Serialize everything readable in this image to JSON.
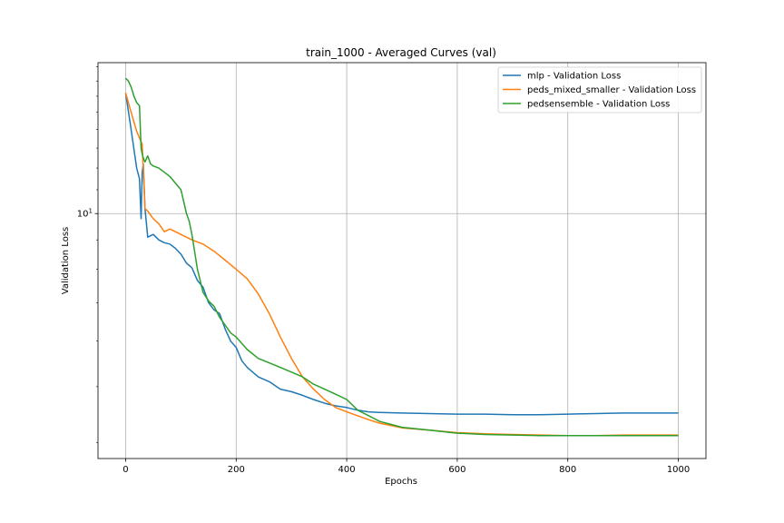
{
  "chart_data": {
    "type": "line",
    "title": "train_1000 - Averaged Curves (val)",
    "xlabel": "Epochs",
    "ylabel": "Validation Loss",
    "xlim": [
      -50,
      1050
    ],
    "ylim": [
      3.75,
      18.3
    ],
    "yscale": "log",
    "grid": true,
    "legend_position": "top-right",
    "x_ticks": [
      0,
      200,
      400,
      600,
      800,
      1000
    ],
    "y_ticks": [
      {
        "value": 10,
        "label": "10",
        "exp": "1"
      }
    ],
    "series": [
      {
        "name": "mlp - Validation Loss",
        "color": "#1f77b4",
        "x": [
          0,
          10,
          20,
          25,
          28,
          30,
          32,
          35,
          40,
          50,
          60,
          70,
          80,
          90,
          100,
          110,
          120,
          130,
          140,
          150,
          160,
          170,
          180,
          190,
          200,
          210,
          220,
          240,
          260,
          280,
          300,
          320,
          340,
          360,
          380,
          400,
          420,
          440,
          460,
          500,
          550,
          600,
          650,
          700,
          750,
          800,
          850,
          900,
          950,
          1000
        ],
        "y": [
          16.2,
          14.0,
          12.0,
          11.5,
          9.8,
          11.8,
          12.2,
          10.2,
          9.1,
          9.2,
          9.0,
          8.9,
          8.85,
          8.7,
          8.5,
          8.2,
          8.05,
          7.65,
          7.45,
          7.0,
          6.8,
          6.7,
          6.3,
          6.0,
          5.85,
          5.55,
          5.4,
          5.2,
          5.1,
          4.95,
          4.9,
          4.83,
          4.75,
          4.68,
          4.63,
          4.6,
          4.55,
          4.52,
          4.51,
          4.5,
          4.49,
          4.48,
          4.48,
          4.47,
          4.47,
          4.48,
          4.49,
          4.5,
          4.5,
          4.5
        ]
      },
      {
        "name": "peds_mixed_smaller - Validation Loss",
        "color": "#ff7f0e",
        "x": [
          0,
          10,
          20,
          30,
          35,
          40,
          50,
          60,
          70,
          80,
          90,
          100,
          120,
          140,
          160,
          180,
          200,
          220,
          240,
          260,
          280,
          300,
          320,
          340,
          360,
          380,
          400,
          420,
          440,
          460,
          480,
          500,
          550,
          600,
          650,
          700,
          750,
          800,
          850,
          900,
          950,
          1000
        ],
        "y": [
          16.2,
          15.0,
          13.9,
          13.2,
          10.2,
          10.1,
          9.8,
          9.6,
          9.3,
          9.4,
          9.3,
          9.2,
          9.0,
          8.85,
          8.6,
          8.3,
          8.0,
          7.7,
          7.25,
          6.7,
          6.1,
          5.6,
          5.2,
          4.95,
          4.75,
          4.6,
          4.52,
          4.45,
          4.38,
          4.32,
          4.28,
          4.24,
          4.2,
          4.16,
          4.14,
          4.13,
          4.12,
          4.11,
          4.11,
          4.12,
          4.12,
          4.12
        ]
      },
      {
        "name": "pedsensemble - Validation Loss",
        "color": "#2ca02c",
        "x": [
          0,
          5,
          10,
          15,
          20,
          25,
          28,
          30,
          32,
          35,
          40,
          45,
          50,
          60,
          70,
          80,
          90,
          100,
          105,
          110,
          115,
          120,
          130,
          140,
          150,
          160,
          170,
          180,
          190,
          200,
          220,
          240,
          260,
          280,
          300,
          320,
          340,
          360,
          380,
          400,
          420,
          440,
          460,
          480,
          500,
          550,
          600,
          650,
          700,
          750,
          800,
          850,
          900,
          950,
          1000
        ],
        "y": [
          17.2,
          17.0,
          16.6,
          16.0,
          15.6,
          15.4,
          13.0,
          12.7,
          12.5,
          12.3,
          12.6,
          12.2,
          12.1,
          12.0,
          11.8,
          11.6,
          11.3,
          11.0,
          10.5,
          10.0,
          9.7,
          9.2,
          8.0,
          7.3,
          7.05,
          6.9,
          6.6,
          6.4,
          6.2,
          6.1,
          5.8,
          5.6,
          5.5,
          5.4,
          5.3,
          5.2,
          5.05,
          4.95,
          4.85,
          4.75,
          4.55,
          4.45,
          4.35,
          4.3,
          4.25,
          4.2,
          4.15,
          4.13,
          4.12,
          4.11,
          4.11,
          4.11,
          4.11,
          4.11,
          4.11
        ]
      }
    ]
  }
}
